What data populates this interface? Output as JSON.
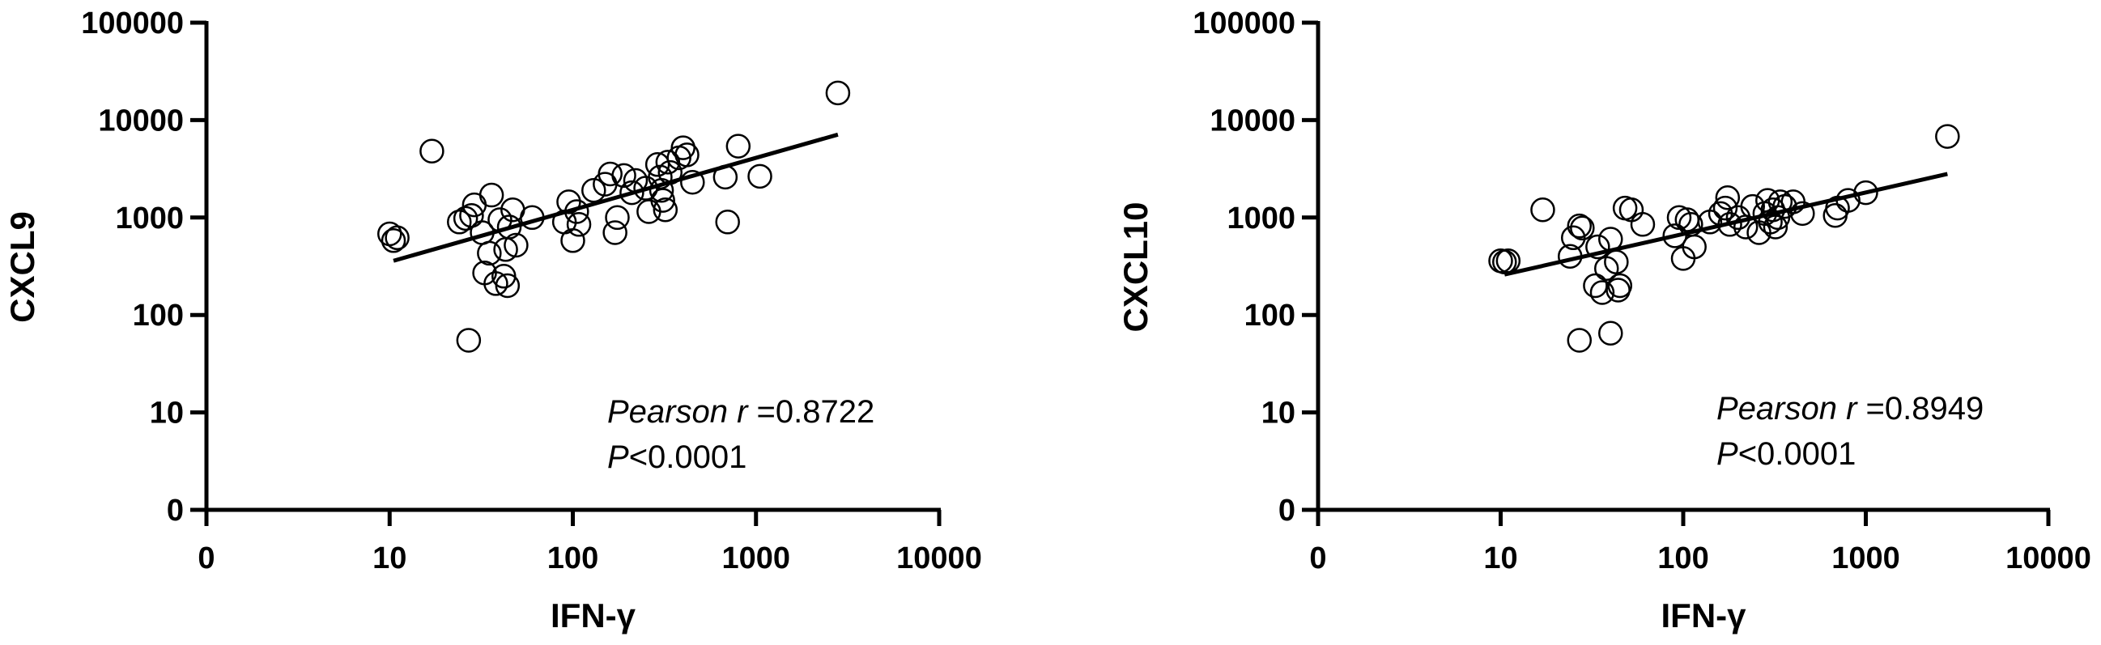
{
  "chart_data": [
    {
      "type": "scatter",
      "xlabel": "IFN-γ",
      "ylabel": "CXCL9",
      "x_scale": "log",
      "y_scale": "log",
      "x_ticks": [
        "0",
        "10",
        "100",
        "1000",
        "10000"
      ],
      "y_ticks": [
        "0",
        "10",
        "100",
        "1000",
        "10000",
        "100000"
      ],
      "annotation": {
        "stat_name": "Pearson r",
        "stat_value": "=0.8722",
        "p_label": "P",
        "p_value": "<0.0001"
      },
      "fit_line": {
        "x": [
          10.5,
          2800
        ],
        "y": [
          360,
          7100
        ]
      },
      "points": [
        {
          "x": 10,
          "y": 680
        },
        {
          "x": 10.5,
          "y": 580
        },
        {
          "x": 11,
          "y": 620
        },
        {
          "x": 17,
          "y": 4800
        },
        {
          "x": 24,
          "y": 900
        },
        {
          "x": 26,
          "y": 980
        },
        {
          "x": 28,
          "y": 1050
        },
        {
          "x": 29,
          "y": 1350
        },
        {
          "x": 27,
          "y": 55
        },
        {
          "x": 32,
          "y": 700
        },
        {
          "x": 33,
          "y": 270
        },
        {
          "x": 35,
          "y": 430
        },
        {
          "x": 36,
          "y": 1700
        },
        {
          "x": 38,
          "y": 210
        },
        {
          "x": 40,
          "y": 950
        },
        {
          "x": 42,
          "y": 250
        },
        {
          "x": 43,
          "y": 470
        },
        {
          "x": 44,
          "y": 200
        },
        {
          "x": 45,
          "y": 800
        },
        {
          "x": 47,
          "y": 1200
        },
        {
          "x": 49,
          "y": 520
        },
        {
          "x": 60,
          "y": 1000
        },
        {
          "x": 90,
          "y": 900
        },
        {
          "x": 95,
          "y": 1450
        },
        {
          "x": 100,
          "y": 580
        },
        {
          "x": 105,
          "y": 1150
        },
        {
          "x": 108,
          "y": 850
        },
        {
          "x": 130,
          "y": 1900
        },
        {
          "x": 150,
          "y": 2200
        },
        {
          "x": 160,
          "y": 2800
        },
        {
          "x": 170,
          "y": 700
        },
        {
          "x": 175,
          "y": 1000
        },
        {
          "x": 190,
          "y": 2700
        },
        {
          "x": 210,
          "y": 1800
        },
        {
          "x": 220,
          "y": 2400
        },
        {
          "x": 250,
          "y": 2000
        },
        {
          "x": 260,
          "y": 1150
        },
        {
          "x": 290,
          "y": 3500
        },
        {
          "x": 300,
          "y": 2600
        },
        {
          "x": 305,
          "y": 1900
        },
        {
          "x": 310,
          "y": 1500
        },
        {
          "x": 320,
          "y": 1200
        },
        {
          "x": 330,
          "y": 3700
        },
        {
          "x": 340,
          "y": 2900
        },
        {
          "x": 380,
          "y": 4100
        },
        {
          "x": 400,
          "y": 5200
        },
        {
          "x": 420,
          "y": 4400
        },
        {
          "x": 450,
          "y": 2300
        },
        {
          "x": 680,
          "y": 2600
        },
        {
          "x": 700,
          "y": 900
        },
        {
          "x": 800,
          "y": 5400
        },
        {
          "x": 1050,
          "y": 2650
        },
        {
          "x": 2800,
          "y": 19000
        }
      ]
    },
    {
      "type": "scatter",
      "xlabel": "IFN-γ",
      "ylabel": "CXCL10",
      "x_scale": "log",
      "y_scale": "log",
      "x_ticks": [
        "0",
        "10",
        "100",
        "1000",
        "10000"
      ],
      "y_ticks": [
        "0",
        "10",
        "100",
        "1000",
        "10000",
        "100000"
      ],
      "annotation": {
        "stat_name": "Pearson r",
        "stat_value": "=0.8949",
        "p_label": "P",
        "p_value": "<0.0001"
      },
      "fit_line": {
        "x": [
          10.5,
          2800
        ],
        "y": [
          260,
          2800
        ]
      },
      "points": [
        {
          "x": 10,
          "y": 360
        },
        {
          "x": 10.5,
          "y": 350
        },
        {
          "x": 11,
          "y": 360
        },
        {
          "x": 17,
          "y": 1200
        },
        {
          "x": 24,
          "y": 400
        },
        {
          "x": 25,
          "y": 620
        },
        {
          "x": 27,
          "y": 820
        },
        {
          "x": 28,
          "y": 780
        },
        {
          "x": 27,
          "y": 55
        },
        {
          "x": 33,
          "y": 200
        },
        {
          "x": 34,
          "y": 500
        },
        {
          "x": 36,
          "y": 170
        },
        {
          "x": 38,
          "y": 300
        },
        {
          "x": 40,
          "y": 600
        },
        {
          "x": 40,
          "y": 65
        },
        {
          "x": 43,
          "y": 350
        },
        {
          "x": 44,
          "y": 180
        },
        {
          "x": 45,
          "y": 200
        },
        {
          "x": 48,
          "y": 1250
        },
        {
          "x": 52,
          "y": 1200
        },
        {
          "x": 60,
          "y": 850
        },
        {
          "x": 90,
          "y": 650
        },
        {
          "x": 95,
          "y": 1000
        },
        {
          "x": 100,
          "y": 380
        },
        {
          "x": 105,
          "y": 950
        },
        {
          "x": 110,
          "y": 850
        },
        {
          "x": 115,
          "y": 500
        },
        {
          "x": 140,
          "y": 900
        },
        {
          "x": 160,
          "y": 1100
        },
        {
          "x": 170,
          "y": 1250
        },
        {
          "x": 175,
          "y": 1600
        },
        {
          "x": 180,
          "y": 850
        },
        {
          "x": 200,
          "y": 1000
        },
        {
          "x": 220,
          "y": 800
        },
        {
          "x": 240,
          "y": 1300
        },
        {
          "x": 260,
          "y": 700
        },
        {
          "x": 280,
          "y": 1100
        },
        {
          "x": 290,
          "y": 1500
        },
        {
          "x": 300,
          "y": 900
        },
        {
          "x": 310,
          "y": 1200
        },
        {
          "x": 320,
          "y": 800
        },
        {
          "x": 330,
          "y": 1000
        },
        {
          "x": 340,
          "y": 1450
        },
        {
          "x": 360,
          "y": 1300
        },
        {
          "x": 400,
          "y": 1450
        },
        {
          "x": 450,
          "y": 1100
        },
        {
          "x": 680,
          "y": 1050
        },
        {
          "x": 700,
          "y": 1250
        },
        {
          "x": 800,
          "y": 1500
        },
        {
          "x": 1000,
          "y": 1800
        },
        {
          "x": 2800,
          "y": 6800
        }
      ]
    }
  ]
}
